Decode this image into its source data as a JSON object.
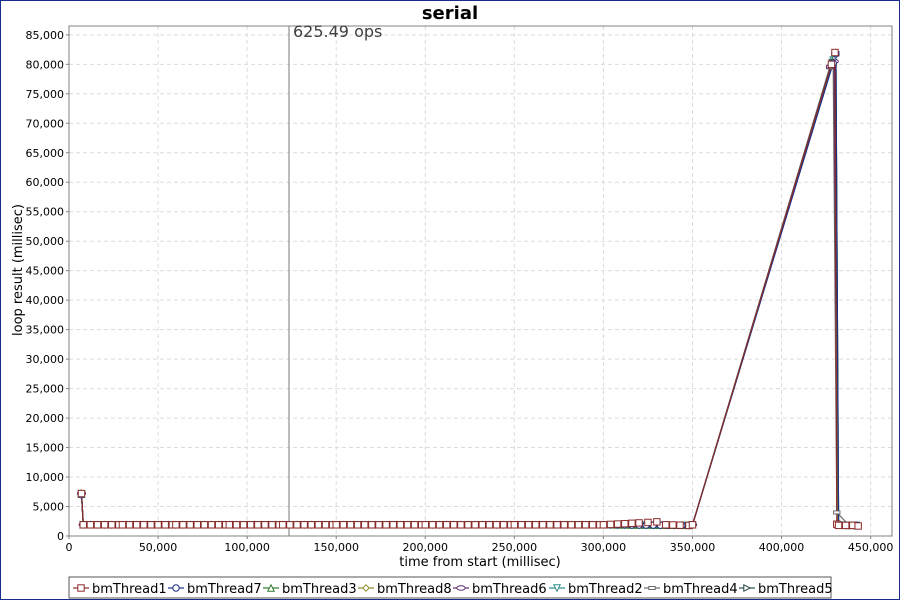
{
  "chart_data": {
    "type": "line",
    "title": "serial",
    "xlabel": "time from start (millisec)",
    "ylabel": "loop result (millisec)",
    "xlim": [
      0,
      462000
    ],
    "ylim": [
      0,
      86500
    ],
    "xticks": [
      0,
      50000,
      100000,
      150000,
      200000,
      250000,
      300000,
      350000,
      400000,
      450000
    ],
    "xtick_labels": [
      "0",
      "50,000",
      "100,000",
      "150,000",
      "200,000",
      "250,000",
      "300,000",
      "350,000",
      "400,000",
      "450,000"
    ],
    "yticks": [
      0,
      5000,
      10000,
      15000,
      20000,
      25000,
      30000,
      35000,
      40000,
      45000,
      50000,
      55000,
      60000,
      65000,
      70000,
      75000,
      80000,
      85000
    ],
    "ytick_labels": [
      "0",
      "5,000",
      "10,000",
      "15,000",
      "20,000",
      "25,000",
      "30,000",
      "35,000",
      "40,000",
      "45,000",
      "50,000",
      "55,000",
      "60,000",
      "65,000",
      "70,000",
      "75,000",
      "80,000",
      "85,000"
    ],
    "grid": true,
    "legend_position": "bottom",
    "marker_line": {
      "x": 123500,
      "label": "625.49 ops"
    },
    "series": [
      {
        "name": "bmThread1",
        "color": "#8b2a2a",
        "marker": "square",
        "x": [
          7000,
          8000,
          30000,
          60000,
          90000,
          120000,
          150000,
          200000,
          250000,
          300000,
          325000,
          330000,
          335000,
          348000,
          350000,
          428000,
          430000,
          431000,
          432000,
          436000,
          440000,
          443000
        ],
        "y": [
          7200,
          1900,
          1900,
          1900,
          1900,
          1900,
          1900,
          1900,
          1900,
          1900,
          2300,
          2400,
          1900,
          1800,
          1900,
          80000,
          82000,
          2000,
          1800,
          1800,
          1800,
          1700
        ]
      },
      {
        "name": "bmThread7",
        "color": "#1a2f8a",
        "marker": "circle",
        "x": [
          7000,
          8000,
          60000,
          120000,
          200000,
          300000,
          348000,
          350000,
          429000,
          430500,
          432000,
          438000,
          442000
        ],
        "y": [
          7000,
          1900,
          1900,
          1900,
          1900,
          1900,
          1800,
          1900,
          80200,
          81800,
          1900,
          1800,
          1800
        ]
      },
      {
        "name": "bmThread3",
        "color": "#2a7a2a",
        "marker": "triangle-up",
        "x": [
          7000,
          8000,
          60000,
          120000,
          200000,
          300000,
          348000,
          350000,
          428500,
          430500,
          432000,
          438000,
          442000
        ],
        "y": [
          7100,
          1900,
          1900,
          1900,
          1900,
          1900,
          1800,
          1900,
          80500,
          82000,
          1900,
          1800,
          1800
        ]
      },
      {
        "name": "bmThread8",
        "color": "#8a8a2a",
        "marker": "diamond",
        "x": [
          7000,
          8000,
          60000,
          120000,
          200000,
          300000,
          348000,
          350000,
          428000,
          430000,
          431500,
          438000,
          442000
        ],
        "y": [
          7300,
          1900,
          1900,
          1900,
          1900,
          1900,
          1800,
          1900,
          79800,
          81900,
          2000,
          1800,
          1800
        ]
      },
      {
        "name": "bmThread6",
        "color": "#5a2a6a",
        "marker": "ellipse",
        "x": [
          7000,
          8000,
          60000,
          120000,
          200000,
          300000,
          348000,
          350000,
          427500,
          429500,
          431500,
          438000,
          442000
        ],
        "y": [
          7200,
          1900,
          1900,
          1900,
          1900,
          1900,
          1800,
          1900,
          79600,
          80500,
          1800,
          1800,
          1800
        ]
      },
      {
        "name": "bmThread2",
        "color": "#2a8a8a",
        "marker": "triangle-down",
        "x": [
          7000,
          8000,
          60000,
          120000,
          200000,
          300000,
          348000,
          350000,
          429000,
          430500,
          432000,
          438000,
          442000
        ],
        "y": [
          7100,
          1900,
          1900,
          1900,
          1900,
          1900,
          1800,
          1900,
          80700,
          81600,
          1900,
          1800,
          1800
        ]
      },
      {
        "name": "bmThread4",
        "color": "#6a6a6a",
        "marker": "hbar",
        "x": [
          7000,
          8000,
          60000,
          120000,
          200000,
          300000,
          348000,
          350000,
          427000,
          429000,
          431000,
          438000,
          442000
        ],
        "y": [
          7400,
          1900,
          1900,
          1900,
          1900,
          1900,
          1800,
          1900,
          79500,
          80000,
          4000,
          1800,
          1800
        ]
      },
      {
        "name": "bmThread5",
        "color": "#2a4a4a",
        "marker": "triangle-right",
        "x": [
          7000,
          8000,
          60000,
          120000,
          200000,
          300000,
          348000,
          350000,
          428500,
          430000,
          431800,
          438000,
          442000
        ],
        "y": [
          7200,
          1900,
          1900,
          1900,
          1900,
          1900,
          1800,
          1900,
          80300,
          81500,
          1900,
          1800,
          1800
        ]
      }
    ]
  }
}
